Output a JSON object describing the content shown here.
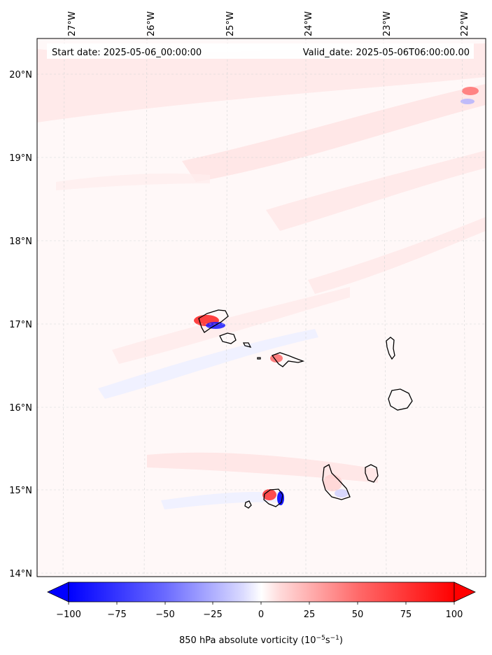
{
  "header": {
    "start_date": "Start date: 2025-05-06_00:00:00",
    "valid_date": "Valid_date: 2025-05-06T06:00:00.00"
  },
  "map": {
    "longitude_labels": [
      "27°W",
      "26°W",
      "25°W",
      "24°W",
      "23°W",
      "22°W"
    ],
    "latitude_labels": [
      "20°N",
      "19°N",
      "18°N",
      "17°N",
      "16°N",
      "15°N",
      "14°N"
    ],
    "field_colors": {
      "negative_strong": "#0000ff",
      "neutral": "#ffffff",
      "positive_strong": "#ff0000",
      "coast": "#000000",
      "grid": "#cccccc"
    }
  },
  "colorbar": {
    "range": [
      -100,
      100
    ],
    "tick_labels": [
      "−100",
      "−75",
      "−50",
      "−25",
      "0",
      "25",
      "50",
      "75",
      "100"
    ],
    "label_main": "850 hPa absolute vorticity (10",
    "label_exp1": "−5",
    "label_mid": "s",
    "label_exp2": "−1",
    "label_end": ")"
  }
}
